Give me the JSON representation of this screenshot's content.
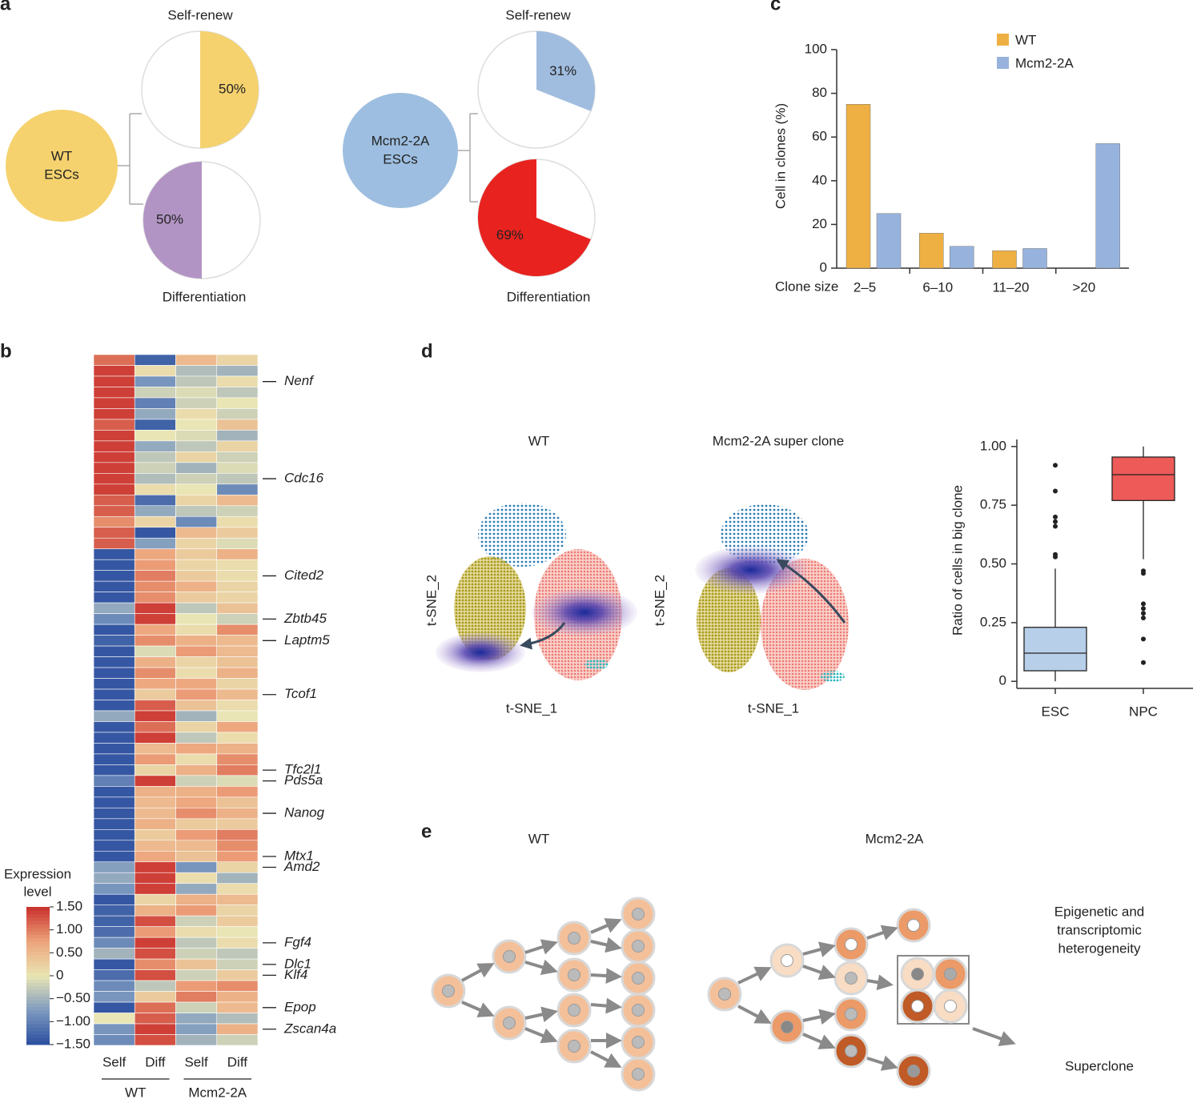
{
  "panel_labels": [
    "a",
    "b",
    "c",
    "d",
    "e"
  ],
  "chart_data": [
    {
      "type": "pie",
      "group_label": [
        "WT",
        "ESCs"
      ],
      "group_color": "#f5d26e",
      "titles": [
        "Self-renew",
        "Differentiation"
      ],
      "values": [
        50,
        50
      ],
      "value_labels": [
        "50%",
        "50%"
      ],
      "colors": [
        "#f5d26e",
        "#b294c4"
      ],
      "directions": [
        "clockwise",
        "counterclockwise"
      ]
    },
    {
      "type": "pie",
      "group_label": [
        "Mcm2-2A",
        "ESCs"
      ],
      "group_color": "#9dbee0",
      "titles": [
        "Self-renew",
        "Differentiation"
      ],
      "values": [
        31,
        69
      ],
      "value_labels": [
        "31%",
        "69%"
      ],
      "colors": [
        "#a0bde0",
        "#e8231f"
      ],
      "directions": [
        "clockwise",
        "counterclockwise"
      ]
    },
    {
      "type": "bar",
      "xlabel": "Clone size",
      "ylabel": "Cell in clones (%)",
      "categories": [
        "2–5",
        "6–10",
        "11–20",
        ">20"
      ],
      "series": [
        {
          "name": "WT",
          "color": "#eeb043",
          "values": [
            75,
            16,
            8,
            0
          ]
        },
        {
          "name": "Mcm2-2A",
          "color": "#97b3dd",
          "values": [
            25,
            10,
            9,
            57
          ]
        }
      ],
      "ylim": [
        0,
        100
      ],
      "yticks": [
        0,
        20,
        40,
        60,
        80,
        100
      ],
      "legend": "top-right"
    },
    {
      "type": "box",
      "ylabel": "Ratio of cells in big clone",
      "categories": [
        "ESC",
        "NPC"
      ],
      "colors": [
        "#b7cfe9",
        "#ee5a57"
      ],
      "boxes": [
        {
          "whisker_low": 0,
          "q1": 0.045,
          "median": 0.12,
          "q3": 0.23,
          "whisker_high": 0.48,
          "outliers": [
            0.53,
            0.54,
            0.66,
            0.68,
            0.7,
            0.81,
            0.92
          ]
        },
        {
          "whisker_low": 0.52,
          "q1": 0.77,
          "median": 0.88,
          "q3": 0.955,
          "whisker_high": 1.0,
          "outliers": [
            0.47,
            0.46,
            0.33,
            0.31,
            0.29,
            0.27,
            0.18,
            0.08
          ]
        }
      ],
      "ylim": [
        -0.03,
        1.03
      ],
      "yticks": [
        0,
        0.25,
        {
          "value": 0.5,
          "label": "0.50"
        },
        0.75,
        {
          "value": 1,
          "label": "1.00"
        }
      ]
    }
  ],
  "heatmap": {
    "columns": [
      "Self",
      "Diff",
      "Self",
      "Diff"
    ],
    "groups": [
      "WT",
      "Mcm2-2A"
    ],
    "legend_title": [
      "Expression",
      "level"
    ],
    "clim": [
      -1.5,
      1.5
    ],
    "colorbar_ticks": [
      {
        "value": 1.5,
        "label": "1.50"
      },
      {
        "value": 1,
        "label": "1.00"
      },
      {
        "value": 0.5,
        "label": "0.50"
      },
      0,
      {
        "value": -0.5,
        "label": "−0.50"
      },
      {
        "value": -1,
        "label": "−1.00"
      },
      {
        "value": -1.5,
        "label": "−1.50"
      }
    ],
    "genes": [
      {
        "name": "Nenf",
        "row": 2
      },
      {
        "name": "Cdc16",
        "row": 11
      },
      {
        "name": "Cited2",
        "row": 20
      },
      {
        "name": "Zbtb45",
        "row": 24
      },
      {
        "name": "Laptm5",
        "row": 26
      },
      {
        "name": "Tcof1",
        "row": 31
      },
      {
        "name": "Tfc2l1",
        "row": 38
      },
      {
        "name": "Pds5a",
        "row": 39
      },
      {
        "name": "Nanog",
        "row": 42
      },
      {
        "name": "Mtx1",
        "row": 46
      },
      {
        "name": "Amd2",
        "row": 47
      },
      {
        "name": "Fgf4",
        "row": 54
      },
      {
        "name": "Dlc1",
        "row": 56
      },
      {
        "name": "Klf4",
        "row": 57
      },
      {
        "name": "Epop",
        "row": 60
      },
      {
        "name": "Zscan4a",
        "row": 62
      }
    ],
    "rows": [
      [
        1.1,
        -1.3,
        0.5,
        0.2
      ],
      [
        1.4,
        0.1,
        -0.4,
        -0.5
      ],
      [
        1.4,
        -0.8,
        -0.3,
        0.1
      ],
      [
        1.4,
        -0.2,
        -0.1,
        -0.3
      ],
      [
        1.4,
        -1.0,
        -0.2,
        0.0
      ],
      [
        1.4,
        -0.6,
        0.1,
        -0.2
      ],
      [
        1.2,
        -1.3,
        0.0,
        0.4
      ],
      [
        1.4,
        0.0,
        -0.1,
        -0.5
      ],
      [
        1.4,
        -0.6,
        -0.3,
        0.2
      ],
      [
        1.4,
        -0.3,
        0.2,
        -0.2
      ],
      [
        1.4,
        -0.2,
        -0.5,
        -0.1
      ],
      [
        1.4,
        -0.4,
        -0.2,
        -0.3
      ],
      [
        1.4,
        0.1,
        0.0,
        -0.9
      ],
      [
        1.2,
        -1.2,
        0.2,
        0.5
      ],
      [
        1.2,
        -0.6,
        -0.3,
        -0.2
      ],
      [
        0.9,
        0.2,
        -0.9,
        0.1
      ],
      [
        1.2,
        -1.4,
        0.5,
        0.3
      ],
      [
        1.2,
        -0.7,
        0.2,
        -0.1
      ],
      [
        -1.4,
        0.7,
        0.3,
        0.6
      ],
      [
        -1.4,
        0.8,
        0.2,
        0.1
      ],
      [
        -1.4,
        1.0,
        0.3,
        0.1
      ],
      [
        -1.4,
        0.9,
        0.6,
        0.2
      ],
      [
        -1.4,
        0.9,
        0.3,
        0.2
      ],
      [
        -0.6,
        1.4,
        -0.3,
        0.4
      ],
      [
        -0.9,
        1.4,
        0.0,
        -0.2
      ],
      [
        -1.4,
        0.7,
        0.1,
        0.9
      ],
      [
        -1.3,
        0.9,
        0.6,
        0.5
      ],
      [
        -1.4,
        -0.1,
        0.8,
        0.5
      ],
      [
        -1.4,
        0.6,
        0.2,
        0.4
      ],
      [
        -1.4,
        0.9,
        0.1,
        0.6
      ],
      [
        -1.4,
        0.7,
        0.7,
        0.2
      ],
      [
        -1.4,
        0.3,
        0.8,
        0.5
      ],
      [
        -1.4,
        1.2,
        0.4,
        0.1
      ],
      [
        -0.6,
        1.4,
        -0.5,
        0.0
      ],
      [
        -1.4,
        1.1,
        0.2,
        0.7
      ],
      [
        -1.4,
        1.4,
        -0.3,
        0.1
      ],
      [
        -1.4,
        0.5,
        0.7,
        0.6
      ],
      [
        -1.4,
        0.8,
        0.1,
        0.9
      ],
      [
        -1.4,
        0.2,
        0.6,
        1.0
      ],
      [
        -1.0,
        1.4,
        -0.2,
        -0.1
      ],
      [
        -1.4,
        0.6,
        0.6,
        0.8
      ],
      [
        -1.4,
        0.5,
        0.7,
        0.4
      ],
      [
        -1.4,
        0.5,
        0.9,
        0.6
      ],
      [
        -1.4,
        0.6,
        0.3,
        0.3
      ],
      [
        -1.4,
        0.3,
        0.8,
        1.0
      ],
      [
        -1.4,
        0.5,
        0.5,
        0.9
      ],
      [
        -1.4,
        0.7,
        0.4,
        0.8
      ],
      [
        -0.7,
        1.4,
        -0.8,
        0.2
      ],
      [
        -0.6,
        1.4,
        0.1,
        -0.5
      ],
      [
        -0.8,
        1.4,
        -0.6,
        0.1
      ],
      [
        -1.4,
        0.2,
        0.6,
        0.5
      ],
      [
        -1.3,
        0.6,
        0.8,
        0.2
      ],
      [
        -1.3,
        1.3,
        -0.2,
        0.3
      ],
      [
        -1.2,
        0.8,
        0.1,
        0.0
      ],
      [
        -0.9,
        1.4,
        -0.3,
        0.1
      ],
      [
        -0.5,
        1.3,
        -0.2,
        -0.3
      ],
      [
        -1.4,
        0.9,
        0.4,
        -0.2
      ],
      [
        -1.2,
        1.3,
        -0.2,
        0.3
      ],
      [
        -0.9,
        -0.3,
        0.8,
        0.9
      ],
      [
        -0.8,
        0.3,
        1.0,
        0.6
      ],
      [
        -1.4,
        1.1,
        -0.2,
        0.5
      ],
      [
        0.0,
        1.2,
        -0.6,
        -0.4
      ],
      [
        -0.8,
        1.4,
        -0.7,
        0.6
      ],
      [
        -0.9,
        1.3,
        -0.5,
        -0.2
      ]
    ]
  },
  "tsne": {
    "titles": [
      "WT",
      "Mcm2-2A super clone"
    ],
    "xlabel": "t-SNE_1",
    "ylabel": "t-SNE_2"
  },
  "diagram": {
    "titles": [
      "WT",
      "Mcm2-2A"
    ],
    "notes": [
      "Epigenetic and",
      "transcriptomic",
      "heterogeneity"
    ],
    "superclone": "Superclone"
  }
}
